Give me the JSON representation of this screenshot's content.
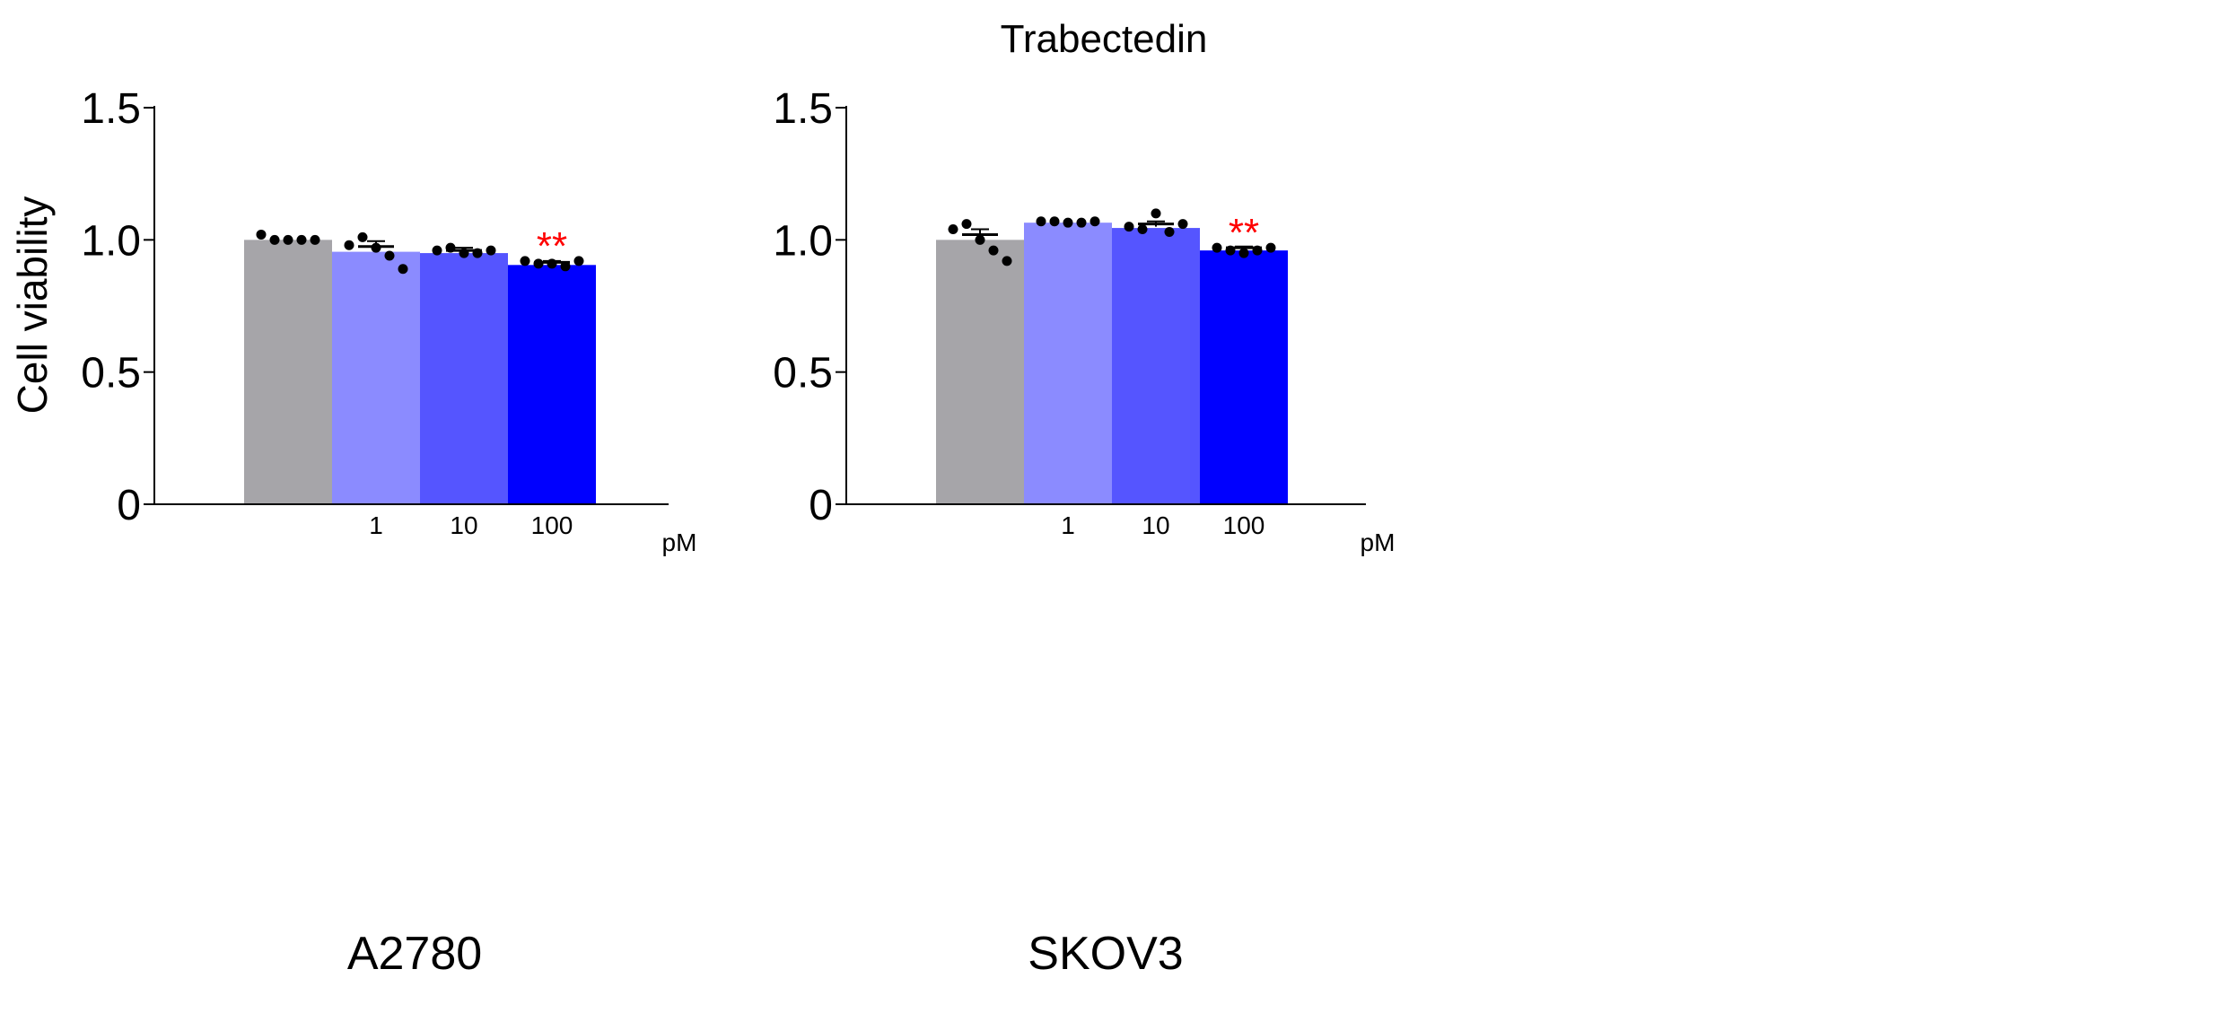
{
  "figure": {
    "title": "Trabectedin",
    "ylabel": "Cell viability",
    "unit_label": "pM"
  },
  "colors": {
    "bars": [
      "#a6a5a9",
      "#8b8bff",
      "#5555ff",
      "#0000ff"
    ],
    "points": "#000000",
    "significance": "#ff0000",
    "axis": "#000000"
  },
  "chart_data": [
    {
      "type": "bar",
      "panel": "A2780",
      "xlabel": "A2780",
      "ylabel": "Cell viability",
      "ylim": [
        0,
        1.5
      ],
      "yticks": [
        0,
        0.5,
        1.0,
        1.5
      ],
      "ytick_labels": [
        "0",
        "0.5",
        "1.0",
        "1.5"
      ],
      "categories": [
        "",
        "1",
        "10",
        "100"
      ],
      "unit": "pM",
      "values": [
        1.0,
        0.955,
        0.95,
        0.905
      ],
      "mean": [
        null,
        0.975,
        0.96,
        0.915
      ],
      "sem": [
        null,
        0.02,
        0.01,
        0.005
      ],
      "points": [
        [
          1.02,
          1.0,
          1.0,
          1.0,
          1.0
        ],
        [
          0.98,
          1.01,
          0.97,
          0.94,
          0.89
        ],
        [
          0.96,
          0.97,
          0.95,
          0.95,
          0.96
        ],
        [
          0.92,
          0.91,
          0.91,
          0.9,
          0.92
        ]
      ],
      "significance": [
        "",
        "",
        "",
        "**"
      ]
    },
    {
      "type": "bar",
      "panel": "SKOV3",
      "xlabel": "SKOV3",
      "ylabel": "",
      "ylim": [
        0,
        1.5
      ],
      "yticks": [
        0,
        0.5,
        1.0,
        1.5
      ],
      "ytick_labels": [
        "0",
        "0.5",
        "1.0",
        "1.5"
      ],
      "categories": [
        "",
        "1",
        "10",
        "100"
      ],
      "unit": "pM",
      "values": [
        1.0,
        1.065,
        1.045,
        0.96
      ],
      "mean": [
        1.02,
        null,
        1.06,
        0.97
      ],
      "sem": [
        0.02,
        null,
        0.01,
        0.005
      ],
      "points": [
        [
          1.04,
          1.06,
          1.0,
          0.96,
          0.92
        ],
        [
          1.07,
          1.07,
          1.065,
          1.065,
          1.07
        ],
        [
          1.05,
          1.04,
          1.1,
          1.03,
          1.06
        ],
        [
          0.97,
          0.96,
          0.95,
          0.96,
          0.97
        ]
      ],
      "significance": [
        "",
        "",
        "",
        "**"
      ]
    }
  ]
}
